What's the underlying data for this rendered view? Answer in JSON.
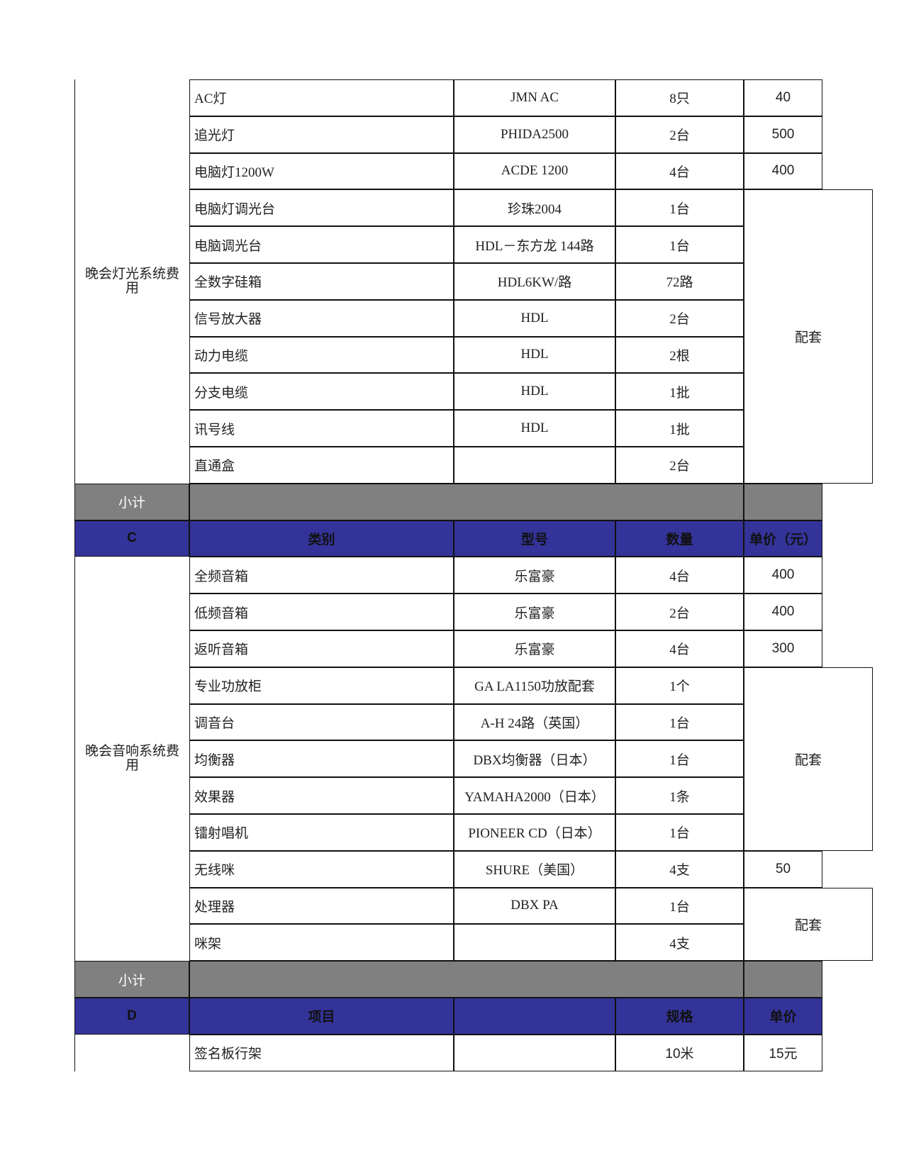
{
  "lighting": {
    "group": "晚会灯光系统费用",
    "items": [
      [
        "AC灯",
        "JMN  AC",
        "8只"
      ],
      [
        "追光灯",
        "PHIDA2500",
        "2台"
      ],
      [
        "电脑灯1200W",
        "ACDE 1200",
        "4台"
      ],
      [
        "电脑灯调光台",
        "珍珠2004",
        "1台"
      ],
      [
        "电脑调光台",
        "HDL－东方龙 144路",
        "1台"
      ],
      [
        "全数字硅箱",
        "HDL6KW/路",
        "72路"
      ],
      [
        "信号放大器",
        "HDL",
        "2台"
      ],
      [
        "动力电缆",
        "HDL",
        "2根"
      ],
      [
        "分支电缆",
        "HDL",
        "1批"
      ],
      [
        "讯号线",
        "HDL",
        "1批"
      ],
      [
        "直通盒",
        null,
        "2台"
      ]
    ],
    "prices": [
      "40",
      "500",
      "400",
      "配套",
      null,
      null,
      null,
      null,
      null,
      null,
      null
    ],
    "subtotal": "小计"
  },
  "header_c": [
    "C",
    "类别",
    "型号",
    "数量",
    "单价（元）"
  ],
  "sound": {
    "group": "晚会音响系统费用",
    "items": [
      [
        "全频音箱",
        "乐富豪",
        "4台"
      ],
      [
        "低频音箱",
        "乐富豪",
        "2台"
      ],
      [
        "返听音箱",
        "乐富豪",
        "4台"
      ],
      [
        "专业功放柜",
        "GA LA1150功放配套",
        "1个"
      ],
      [
        "调音台",
        "A-H 24路（英国）",
        "1台"
      ],
      [
        "均衡器",
        "DBX均衡器（日本）",
        "1台"
      ],
      [
        "效果器",
        "YAMAHA2000（日本）",
        "1条"
      ],
      [
        "镭射唱机",
        "PIONEER CD（日本）",
        "1台"
      ],
      [
        "无线咪",
        "SHURE（美国）",
        "4支"
      ],
      [
        "处理器",
        "DBX  PA",
        "1台"
      ],
      [
        "咪架",
        null,
        "4支"
      ]
    ],
    "prices": [
      "400",
      "400",
      "300",
      "配套",
      null,
      null,
      null,
      null,
      "50",
      "配套",
      null
    ],
    "subtotal": "小计"
  },
  "header_d": {
    "code": "D",
    "item": "项目",
    "spec": "规格",
    "price": "单价"
  },
  "last_row": {
    "item": "签名板行架",
    "spec": "10米",
    "price": "15元"
  }
}
